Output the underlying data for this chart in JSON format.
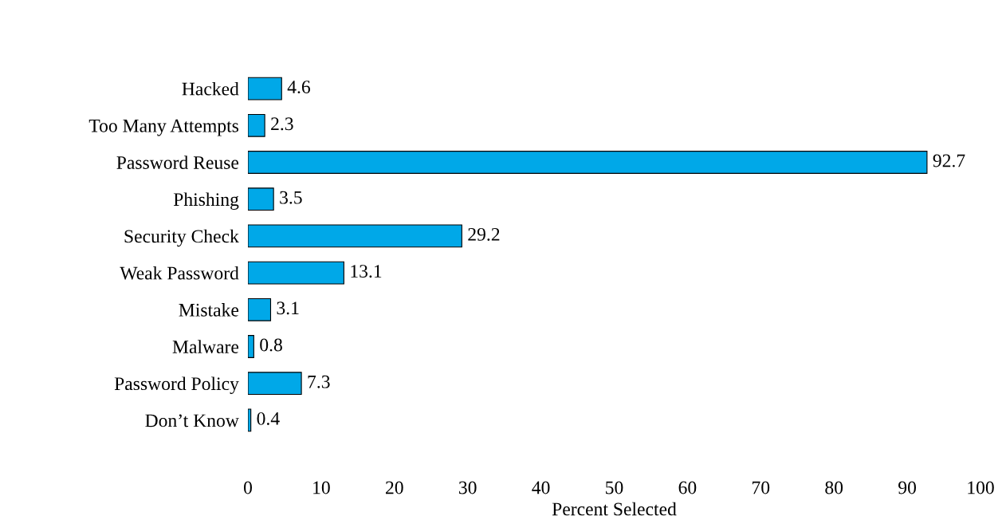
{
  "chart_data": {
    "type": "bar",
    "orientation": "horizontal",
    "xlabel": "Percent Selected",
    "categories": [
      "Hacked",
      "Too Many Attempts",
      "Password Reuse",
      "Phishing",
      "Security Check",
      "Weak Password",
      "Mistake",
      "Malware",
      "Password Policy",
      "Don’t Know"
    ],
    "values": [
      4.6,
      2.3,
      92.7,
      3.5,
      29.2,
      13.1,
      3.1,
      0.8,
      7.3,
      0.4
    ],
    "color": "#00a8e8",
    "xlim": [
      0,
      100
    ],
    "xticks": [
      0,
      10,
      20,
      30,
      40,
      50,
      60,
      70,
      80,
      90,
      100
    ],
    "grid": false,
    "data_labels": true
  }
}
